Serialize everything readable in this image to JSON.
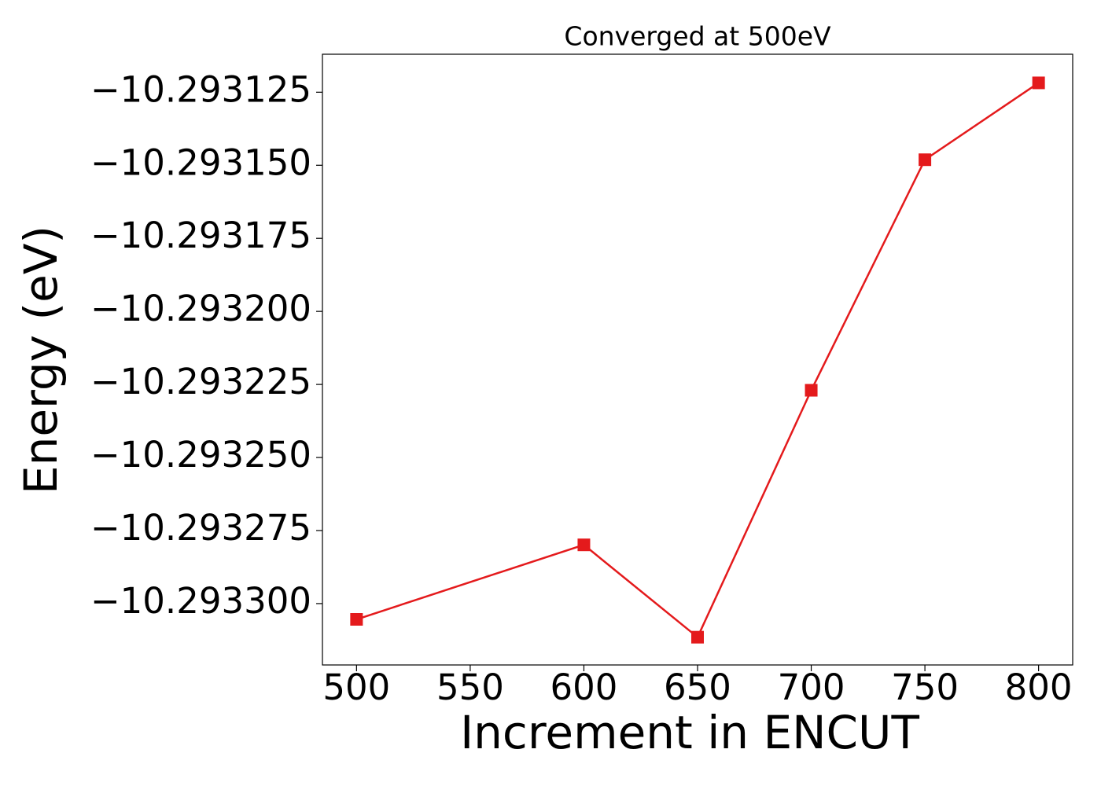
{
  "chart_data": {
    "type": "line",
    "title": "Converged at 500eV",
    "x_label": "Increment in ENCUT",
    "y_label": "Energy (eV)",
    "x": [
      500,
      600,
      650,
      700,
      750,
      800
    ],
    "values": [
      -10.2933054,
      -10.2932799,
      -10.2933115,
      -10.293227,
      -10.2931481,
      -10.2931218
    ],
    "color": "#e41a1c",
    "marker": "square",
    "xlim": [
      485,
      815
    ],
    "xticks": [
      500,
      550,
      600,
      650,
      700,
      750,
      800
    ],
    "ylim": [
      -10.293321,
      -10.293112
    ],
    "yticks": [
      {
        "value": -10.2933,
        "label": "−10.293300"
      },
      {
        "value": -10.293275,
        "label": "−10.293275"
      },
      {
        "value": -10.29325,
        "label": "−10.293250"
      },
      {
        "value": -10.293225,
        "label": "−10.293225"
      },
      {
        "value": -10.2932,
        "label": "−10.293200"
      },
      {
        "value": -10.293175,
        "label": "−10.293175"
      },
      {
        "value": -10.29315,
        "label": "−10.293150"
      },
      {
        "value": -10.293125,
        "label": "−10.293125"
      }
    ],
    "grid": false
  }
}
